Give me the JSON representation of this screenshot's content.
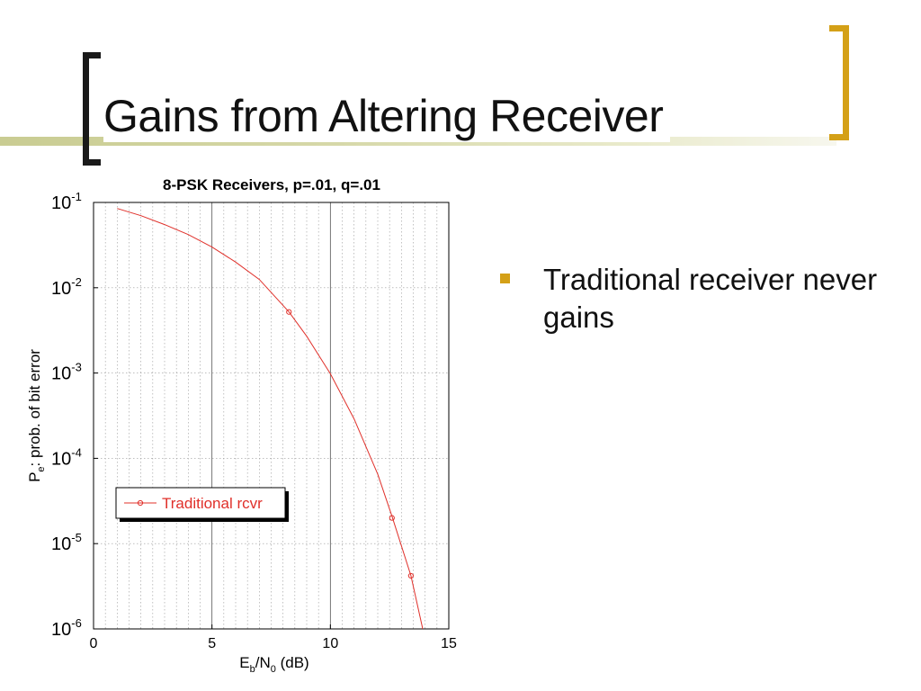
{
  "slide": {
    "title": "Gains from Altering Receiver",
    "bullet": "Traditional receiver never gains"
  },
  "colors": {
    "accent": "#d4a017",
    "series": "#e0302a",
    "bar": "#c9cc92"
  },
  "chart_data": {
    "type": "line",
    "title": "8-PSK Receivers, p=.01, q=.01",
    "xlabel": {
      "main": "E",
      "sub1": "b",
      "mid": "/N",
      "sub2": "0",
      "tail": " (dB)"
    },
    "ylabel": {
      "main": "P",
      "sub": "e",
      "tail": ": prob. of bit error"
    },
    "xlim": [
      0,
      15
    ],
    "ylim": [
      1e-06,
      0.1
    ],
    "yscale": "log",
    "grid": true,
    "legend_position": "lower-left",
    "x_ticks": [
      0,
      5,
      10,
      15
    ],
    "y_ticks": [
      {
        "value": 0.1,
        "base": "10",
        "exp": "-1"
      },
      {
        "value": 0.01,
        "base": "10",
        "exp": "-2"
      },
      {
        "value": 0.001,
        "base": "10",
        "exp": "-3"
      },
      {
        "value": 0.0001,
        "base": "10",
        "exp": "-4"
      },
      {
        "value": 1e-05,
        "base": "10",
        "exp": "-5"
      },
      {
        "value": 1e-06,
        "base": "10",
        "exp": "-6"
      }
    ],
    "series": [
      {
        "name": "Traditional rcvr",
        "color": "#e0302a",
        "x": [
          1.0,
          2.0,
          3.0,
          4.0,
          5.0,
          6.0,
          7.0,
          8.25,
          9.0,
          10.0,
          11.0,
          12.0,
          12.6,
          13.4,
          13.9
        ],
        "y": [
          0.085,
          0.07,
          0.055,
          0.042,
          0.03,
          0.02,
          0.0125,
          0.0052,
          0.0027,
          0.00098,
          0.00029,
          6.5e-05,
          2.1e-05,
          4.2e-06,
          1e-06
        ],
        "markers": [
          {
            "x": 8.25,
            "y": 0.0052
          },
          {
            "x": 12.6,
            "y": 2e-05
          },
          {
            "x": 13.4,
            "y": 4.2e-06
          }
        ]
      }
    ]
  }
}
